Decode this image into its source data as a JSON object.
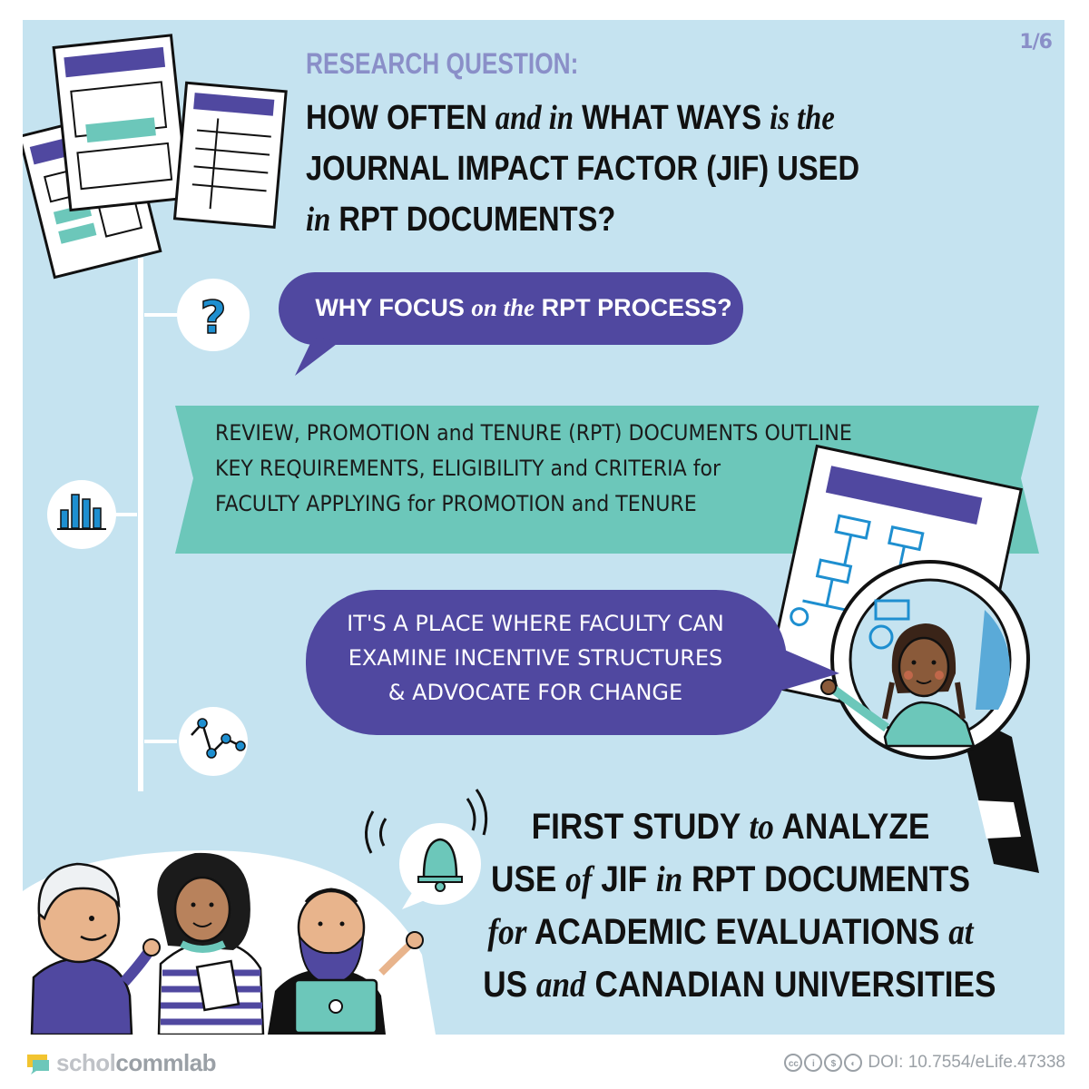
{
  "page_number": "1/6",
  "research_label": "RESEARCH QUESTION:",
  "headline": {
    "l1_a": "HOW OFTEN ",
    "l1_b": "and in",
    "l1_c": " WHAT WAYS ",
    "l1_d": "is the",
    "l2": "JOURNAL IMPACT FACTOR (JIF) USED",
    "l3_a": "in",
    "l3_b": " RPT DOCUMENTS?"
  },
  "why": {
    "a": "WHY FOCUS ",
    "b": "on the",
    "c": " RPT PROCESS?"
  },
  "banner": {
    "line1": "REVIEW, PROMOTION and TENURE (RPT) DOCUMENTS OUTLINE",
    "line2": "KEY REQUIREMENTS, ELIGIBILITY and CRITERIA for",
    "line3": "FACULTY APPLYING for PROMOTION and TENURE"
  },
  "place": {
    "line1": "IT'S A PLACE WHERE FACULTY CAN",
    "line2": "EXAMINE INCENTIVE STRUCTURES",
    "line3": "& ADVOCATE FOR CHANGE"
  },
  "first": {
    "l1_a": "FIRST STUDY ",
    "l1_b": "to",
    "l1_c": " ANALYZE",
    "l2_a": "USE ",
    "l2_b": "of",
    "l2_c": " JIF ",
    "l2_d": "in",
    "l2_e": " RPT DOCUMENTS",
    "l3_a": "for",
    "l3_b": " ACADEMIC EVALUATIONS ",
    "l3_c": "at",
    "l4_a": "US ",
    "l4_b": "and",
    "l4_c": " CANADIAN UNIVERSITIES"
  },
  "footer": {
    "brand_part1": "schol",
    "brand_part2": "commlab",
    "doi": "DOI: 10.7554/eLife.47338"
  },
  "colors": {
    "background": "#c5e3f0",
    "purple": "#5048a0",
    "teal": "#6cc7ba",
    "light_purple": "#8a8fc8"
  },
  "icons": [
    "question-mark-icon",
    "bar-chart-icon",
    "network-graph-icon",
    "bell-icon",
    "magnifying-glass-icon",
    "document-icon",
    "creative-commons-icon"
  ]
}
